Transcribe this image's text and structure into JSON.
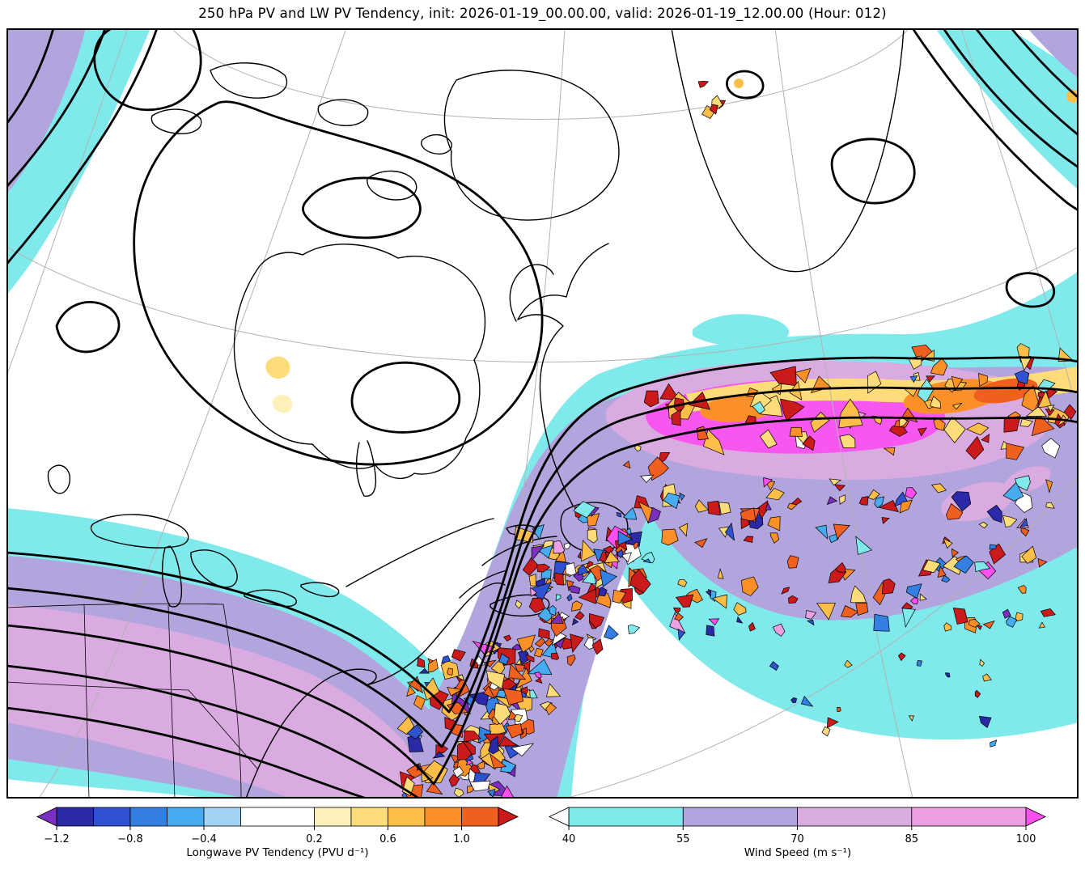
{
  "title": "250 hPa PV and LW PV Tendency, init: 2026-01-19_00.00.00, valid: 2026-01-19_12.00.00 (Hour: 012)",
  "init_time": "2026-01-19_00.00.00",
  "valid_time": "2026-01-19_12.00.00",
  "forecast_hour": "012",
  "chart_data": {
    "type": "heatmap",
    "title": "250 hPa PV and LW PV Tendency, init: 2026-01-19_00.00.00, valid: 2026-01-19_12.00.00 (Hour: 012)",
    "description": "Polar-projection weather map over eastern North America, Greenland and the North Atlantic. Thick black contours show 250 hPa potential vorticity and the jet-stream trough; smooth shaded bands show wind speed (cyan through magenta); the speckled orange/red/blue field along and downstream of the trough shows longwave PV tendency.",
    "grid": true,
    "legend_position": "bottom",
    "shaded_fields": [
      {
        "name": "Wind Speed",
        "units": "m s⁻¹",
        "levels": [
          40,
          55,
          70,
          85,
          100
        ],
        "extend": "max"
      },
      {
        "name": "Longwave PV Tendency",
        "units": "PVU d⁻¹",
        "levels": [
          -1.2,
          -1.0,
          -0.8,
          -0.6,
          -0.4,
          -0.2,
          0.2,
          0.4,
          0.6,
          0.8,
          1.0,
          1.2
        ],
        "extend": "both"
      }
    ],
    "colorbars": [
      {
        "id": "lwpv-tendency",
        "label": "Longwave PV Tendency (PVU d⁻¹)",
        "ticks": [
          "−1.2",
          "−0.8",
          "−0.4",
          "0.2",
          "0.6",
          "1.0"
        ],
        "tick_values": [
          -1.2,
          -0.8,
          -0.4,
          0.2,
          0.6,
          1.0
        ],
        "boundaries": [
          -1.2,
          -1.0,
          -0.8,
          -0.6,
          -0.4,
          -0.2,
          0.2,
          0.4,
          0.6,
          0.8,
          1.0,
          1.2
        ],
        "segment_colors": [
          "#2a2aa8",
          "#2f52d0",
          "#3380e2",
          "#47abef",
          "#a3d3f5",
          "#ffffff",
          "#fdf0b8",
          "#fedc7a",
          "#fdbe4a",
          "#fb9028",
          "#ef5f1e"
        ],
        "under_color": "#7b2fbe",
        "over_color": "#cb1a1a"
      },
      {
        "id": "wind-speed",
        "label": "Wind Speed (m s⁻¹)",
        "ticks": [
          "40",
          "55",
          "70",
          "85",
          "100"
        ],
        "tick_values": [
          40,
          55,
          70,
          85,
          100
        ],
        "boundaries": [
          40,
          55,
          70,
          85,
          100
        ],
        "segment_colors": [
          "#7fe9ec",
          "#b2a5de",
          "#d9abe0",
          "#ec9fe2"
        ],
        "under_color": "#ffffff",
        "over_color": "#fb4ff0"
      }
    ],
    "map_colors": {
      "background": "#ffffff",
      "graticule": "#b3b3b3",
      "coastline": "#000000",
      "pv_contour": "#000000",
      "wind_cyan": "#7fe9ec",
      "wind_purple": "#b2a5de",
      "wind_pink": "#d9abe0",
      "wind_magenta": "#f857ef"
    }
  }
}
